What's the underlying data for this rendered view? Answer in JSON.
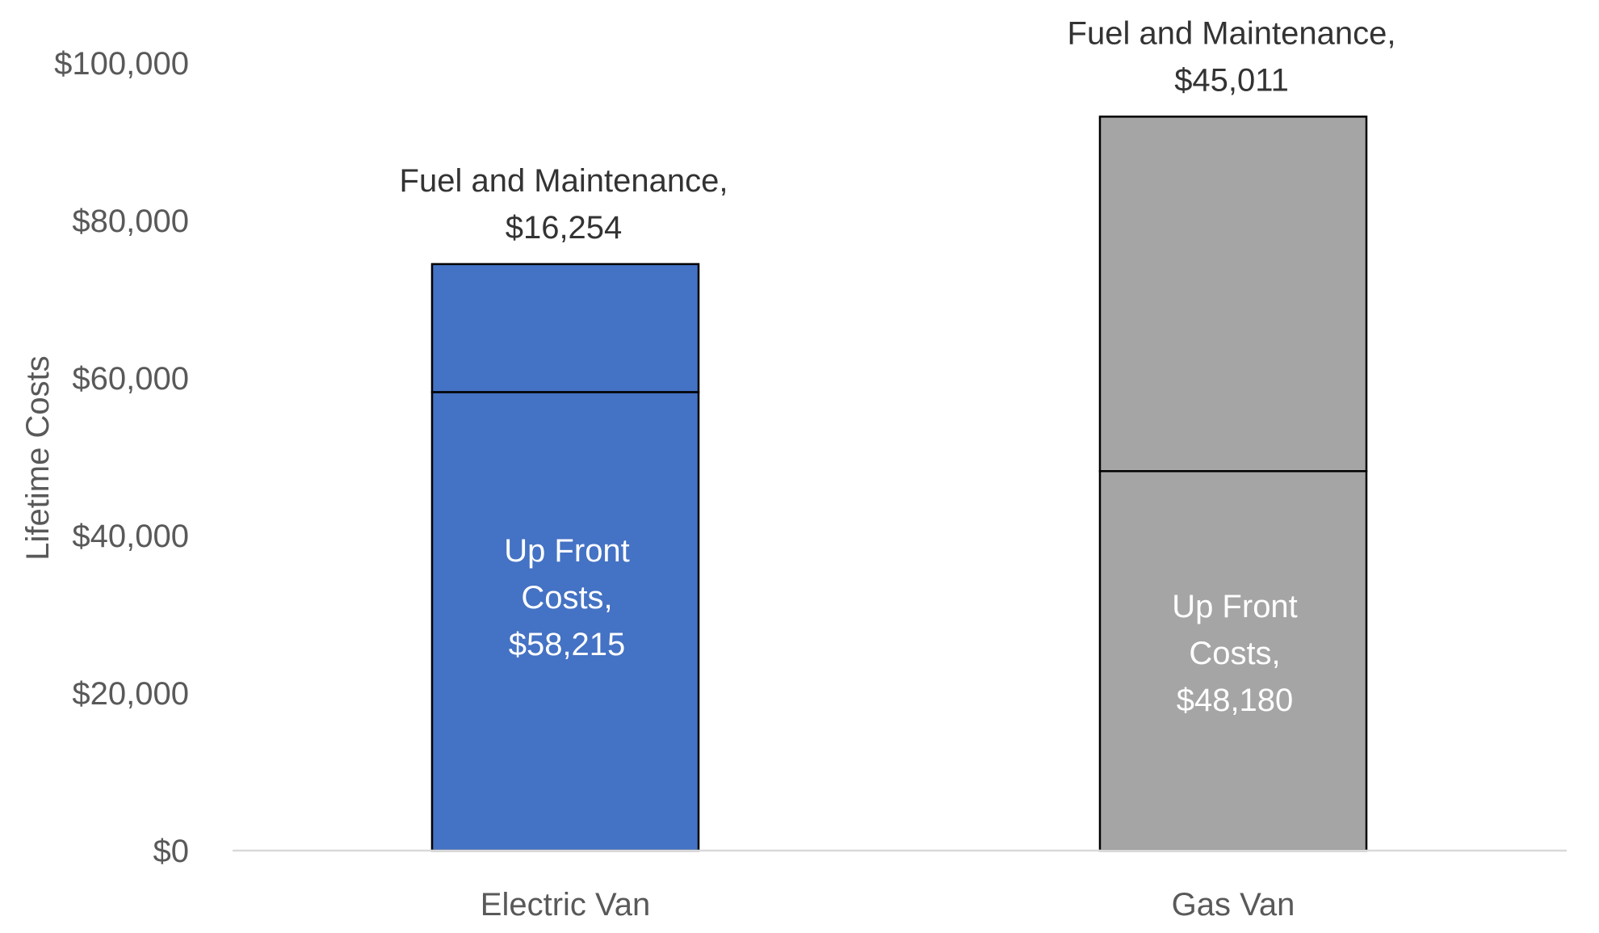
{
  "chart_data": {
    "type": "bar",
    "stacked": true,
    "categories": [
      "Electric Van",
      "Gas Van"
    ],
    "series": [
      {
        "name": "Up Front Costs",
        "values": [
          58215,
          48180
        ],
        "colors": [
          "#4472C4",
          "#A5A5A5"
        ],
        "labels": [
          "Up Front Costs,",
          "Up Front Costs,"
        ],
        "value_labels": [
          "$58,215",
          "$48,180"
        ],
        "label_color": "#FFFFFF"
      },
      {
        "name": "Fuel and Maintenance",
        "values": [
          16254,
          45011
        ],
        "colors": [
          "#4472C4",
          "#A5A5A5"
        ],
        "labels": [
          "Fuel and Maintenance,",
          "Fuel and Maintenance,"
        ],
        "value_labels": [
          "$16,254",
          "$45,011"
        ],
        "label_color": "#333333"
      }
    ],
    "y_ticks": [
      "$0",
      "$20,000",
      "$40,000",
      "$60,000",
      "$80,000",
      "$100,000"
    ],
    "ylim": [
      0,
      100000
    ],
    "ylabel": "Lifetime Costs",
    "xlabel": "",
    "grid": false,
    "legend": "none",
    "axis_color": "#D9D9D9",
    "outline_color": "#000000"
  }
}
